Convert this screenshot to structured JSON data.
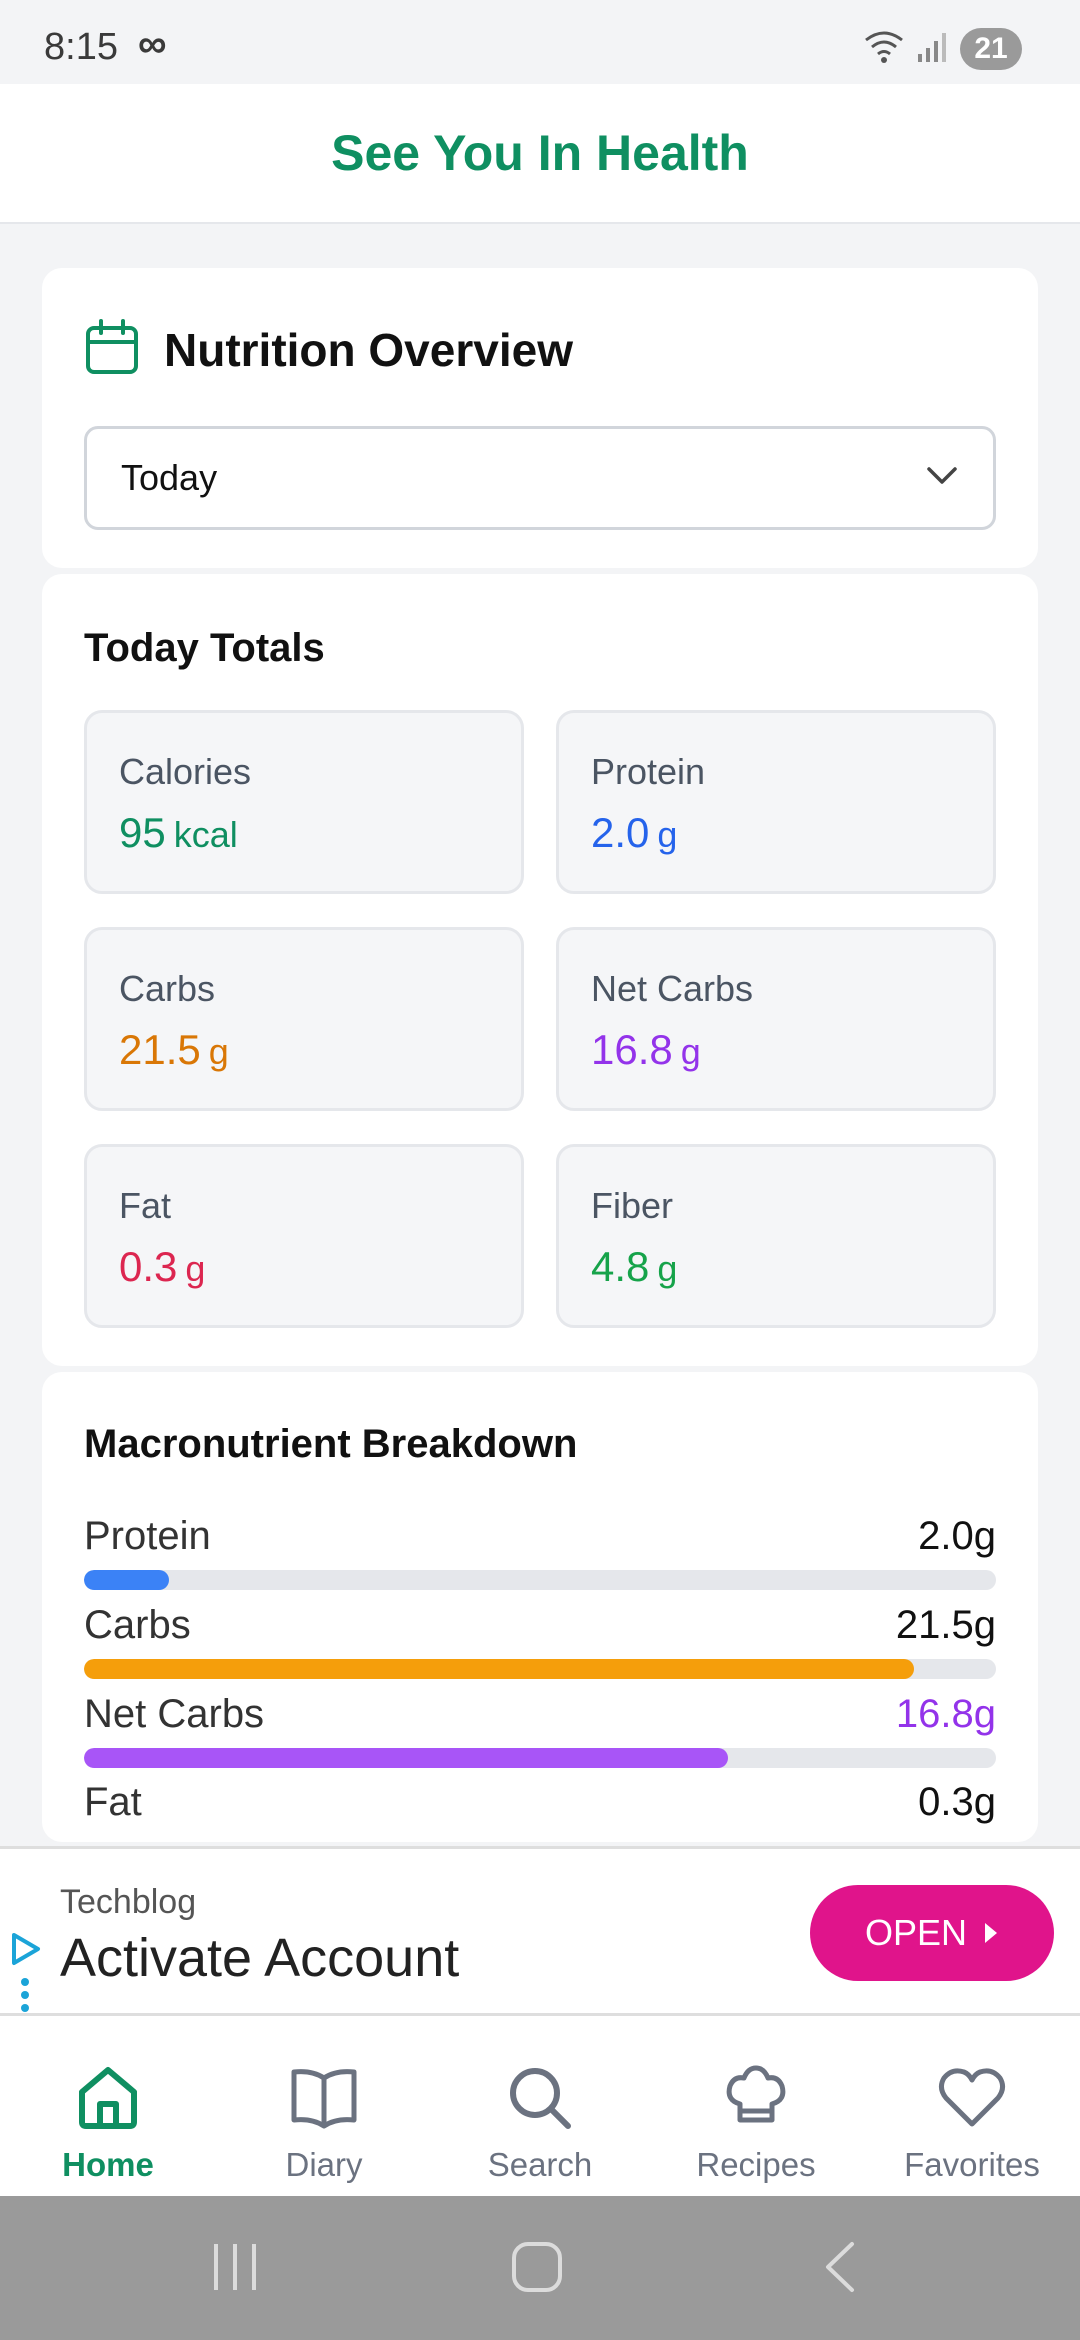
{
  "status_bar": {
    "time": "8:15",
    "infinity_glyph": "∞",
    "battery": "21",
    "icons": [
      "wifi-icon",
      "signal-icon"
    ]
  },
  "header": {
    "title": "See You In Health"
  },
  "overview": {
    "title": "Nutrition Overview",
    "icon": "calendar-icon",
    "period_selected": "Today"
  },
  "totals": {
    "title": "Today Totals",
    "items": [
      {
        "label": "Calories",
        "value": "95",
        "unit": "kcal",
        "color": "#0f8f61"
      },
      {
        "label": "Protein",
        "value": "2.0",
        "unit": "g",
        "color": "#2563eb"
      },
      {
        "label": "Carbs",
        "value": "21.5",
        "unit": "g",
        "color": "#d97706"
      },
      {
        "label": "Net Carbs",
        "value": "16.8",
        "unit": "g",
        "color": "#9333ea"
      },
      {
        "label": "Fat",
        "value": "0.3",
        "unit": "g",
        "color": "#dc2650"
      },
      {
        "label": "Fiber",
        "value": "4.8",
        "unit": "g",
        "color": "#16a34a"
      }
    ]
  },
  "macros": {
    "title": "Macronutrient Breakdown",
    "items": [
      {
        "label": "Protein",
        "value": "2.0g",
        "fraction": 0.093,
        "color": "#3b82f6",
        "value_color": "#111111"
      },
      {
        "label": "Carbs",
        "value": "21.5g",
        "fraction": 0.91,
        "color": "#f59e0b",
        "value_color": "#111111"
      },
      {
        "label": "Net Carbs",
        "value": "16.8g",
        "fraction": 0.706,
        "color": "#a855f7",
        "value_color": "#9333ea"
      },
      {
        "label": "Fat",
        "value": "0.3g",
        "fraction": 0.014,
        "color": "#ef4444",
        "value_color": "#111111"
      }
    ]
  },
  "ad": {
    "sponsor": "Techblog",
    "headline": "Activate Account",
    "button_label": "OPEN"
  },
  "nav": {
    "items": [
      {
        "label": "Home",
        "icon": "home-icon",
        "active": true
      },
      {
        "label": "Diary",
        "icon": "book-icon",
        "active": false
      },
      {
        "label": "Search",
        "icon": "search-icon",
        "active": false
      },
      {
        "label": "Recipes",
        "icon": "chef-hat-icon",
        "active": false
      },
      {
        "label": "Favorites",
        "icon": "heart-icon",
        "active": false
      }
    ]
  },
  "colors": {
    "brand": "#0f8f61",
    "ad_button": "#e0148b",
    "inactive": "#6b7280"
  }
}
